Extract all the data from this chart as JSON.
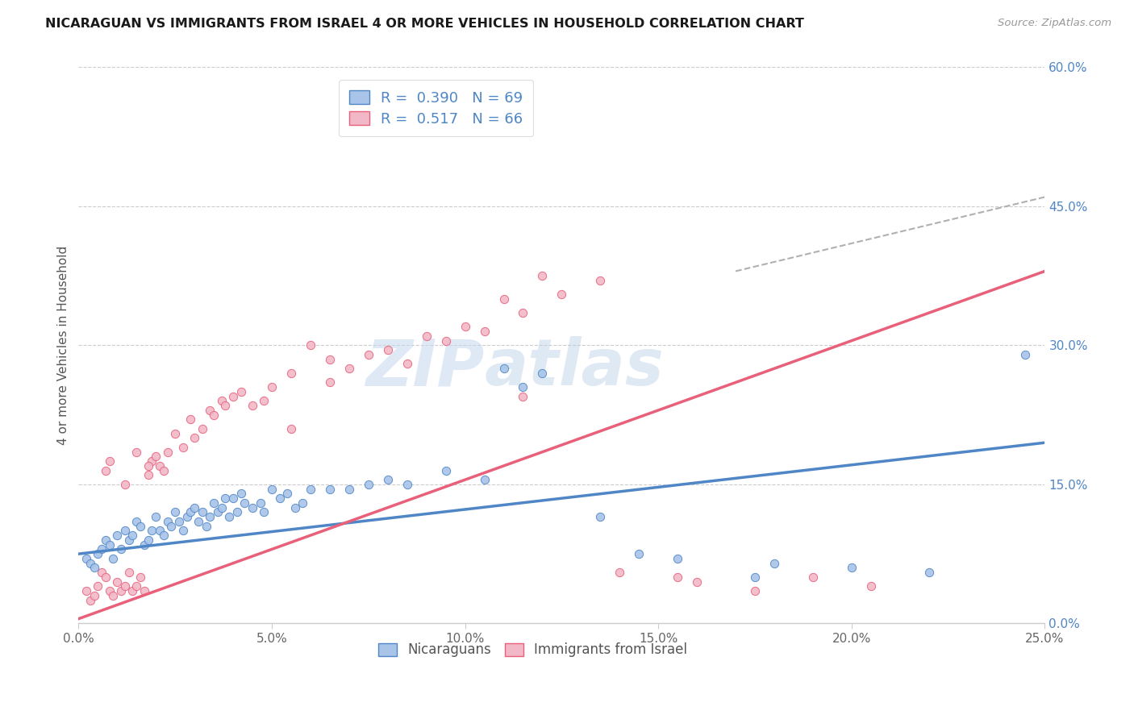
{
  "title": "NICARAGUAN VS IMMIGRANTS FROM ISRAEL 4 OR MORE VEHICLES IN HOUSEHOLD CORRELATION CHART",
  "source": "Source: ZipAtlas.com",
  "xlabel_vals": [
    0.0,
    5.0,
    10.0,
    15.0,
    20.0,
    25.0
  ],
  "ylabel": "4 or more Vehicles in Household",
  "right_yvals": [
    0.0,
    15.0,
    30.0,
    45.0,
    60.0
  ],
  "nicaraguan_color": "#a8c4e8",
  "israel_color": "#f2b8c8",
  "trendline_blue": "#4f86c6",
  "trendline_pink": "#e8607a",
  "trendline_dashed_color": "#b0b0b0",
  "watermark_zip": "ZIP",
  "watermark_atlas": "atlas",
  "xlim": [
    0.0,
    25.0
  ],
  "ylim": [
    0.0,
    60.0
  ],
  "blue_trend_x": [
    0.0,
    25.0
  ],
  "blue_trend_y": [
    7.5,
    19.5
  ],
  "pink_trend_x": [
    0.0,
    25.0
  ],
  "pink_trend_y": [
    0.5,
    38.0
  ],
  "dashed_trend_x": [
    17.0,
    25.0
  ],
  "dashed_trend_y": [
    38.0,
    46.0
  ],
  "nic_x": [
    0.2,
    0.3,
    0.4,
    0.5,
    0.6,
    0.7,
    0.8,
    0.9,
    1.0,
    1.1,
    1.2,
    1.3,
    1.4,
    1.5,
    1.6,
    1.7,
    1.8,
    1.9,
    2.0,
    2.1,
    2.2,
    2.3,
    2.4,
    2.5,
    2.6,
    2.7,
    2.8,
    2.9,
    3.0,
    3.1,
    3.2,
    3.3,
    3.4,
    3.5,
    3.6,
    3.7,
    3.8,
    3.9,
    4.0,
    4.1,
    4.2,
    4.3,
    4.5,
    4.7,
    4.8,
    5.0,
    5.2,
    5.4,
    5.6,
    5.8,
    6.0,
    6.5,
    7.0,
    7.5,
    8.0,
    8.5,
    9.5,
    10.5,
    11.0,
    11.5,
    12.0,
    13.5,
    14.5,
    15.5,
    17.5,
    20.0,
    24.5,
    18.0,
    22.0
  ],
  "nic_y": [
    7.0,
    6.5,
    6.0,
    7.5,
    8.0,
    9.0,
    8.5,
    7.0,
    9.5,
    8.0,
    10.0,
    9.0,
    9.5,
    11.0,
    10.5,
    8.5,
    9.0,
    10.0,
    11.5,
    10.0,
    9.5,
    11.0,
    10.5,
    12.0,
    11.0,
    10.0,
    11.5,
    12.0,
    12.5,
    11.0,
    12.0,
    10.5,
    11.5,
    13.0,
    12.0,
    12.5,
    13.5,
    11.5,
    13.5,
    12.0,
    14.0,
    13.0,
    12.5,
    13.0,
    12.0,
    14.5,
    13.5,
    14.0,
    12.5,
    13.0,
    14.5,
    14.5,
    14.5,
    15.0,
    15.5,
    15.0,
    16.5,
    15.5,
    27.5,
    25.5,
    27.0,
    11.5,
    7.5,
    7.0,
    5.0,
    6.0,
    29.0,
    6.5,
    5.5
  ],
  "isr_x": [
    0.2,
    0.3,
    0.4,
    0.5,
    0.6,
    0.7,
    0.8,
    0.9,
    1.0,
    1.1,
    1.2,
    1.3,
    1.4,
    1.5,
    1.6,
    1.7,
    1.8,
    1.9,
    2.0,
    2.1,
    2.2,
    2.3,
    2.5,
    2.7,
    2.9,
    3.0,
    3.2,
    3.4,
    3.5,
    3.7,
    3.8,
    4.0,
    4.2,
    4.5,
    4.8,
    5.0,
    5.5,
    6.0,
    6.5,
    7.0,
    7.5,
    8.0,
    8.5,
    9.0,
    9.5,
    10.0,
    10.5,
    11.0,
    11.5,
    12.0,
    12.5,
    13.5,
    14.0,
    15.5,
    16.0,
    17.5,
    19.0,
    20.5,
    11.5,
    5.5,
    6.5,
    1.5,
    0.7,
    0.8,
    1.2,
    1.8
  ],
  "isr_y": [
    3.5,
    2.5,
    3.0,
    4.0,
    5.5,
    5.0,
    3.5,
    3.0,
    4.5,
    3.5,
    4.0,
    5.5,
    3.5,
    4.0,
    5.0,
    3.5,
    16.0,
    17.5,
    18.0,
    17.0,
    16.5,
    18.5,
    20.5,
    19.0,
    22.0,
    20.0,
    21.0,
    23.0,
    22.5,
    24.0,
    23.5,
    24.5,
    25.0,
    23.5,
    24.0,
    25.5,
    27.0,
    30.0,
    28.5,
    27.5,
    29.0,
    29.5,
    28.0,
    31.0,
    30.5,
    32.0,
    31.5,
    35.0,
    33.5,
    37.5,
    35.5,
    37.0,
    5.5,
    5.0,
    4.5,
    3.5,
    5.0,
    4.0,
    24.5,
    21.0,
    26.0,
    18.5,
    16.5,
    17.5,
    15.0,
    17.0
  ]
}
